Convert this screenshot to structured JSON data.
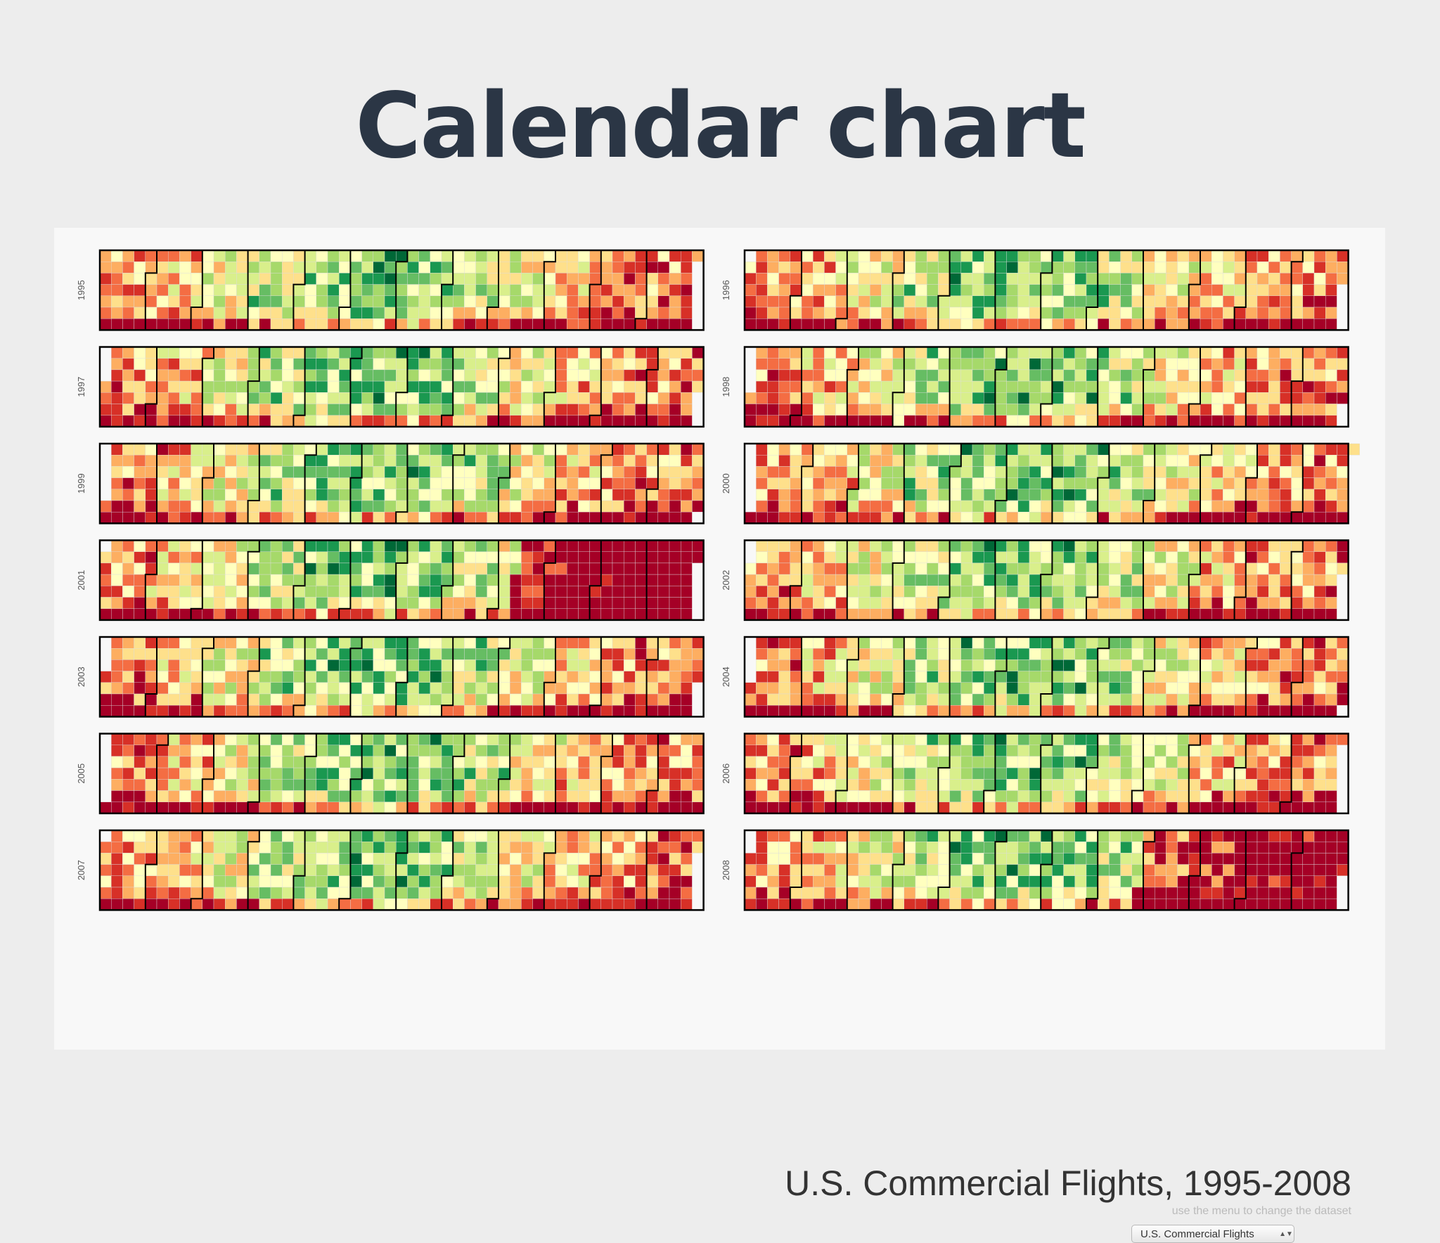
{
  "slide": {
    "title": "Calendar chart"
  },
  "chart_data": {
    "type": "heatmap",
    "subtype": "calendar",
    "title": "U.S. Commercial Flights, 1995-2008",
    "subtitle": "use the menu to change the dataset",
    "years": [
      "1995",
      "1996",
      "1997",
      "1998",
      "1999",
      "2000",
      "2001",
      "2002",
      "2003",
      "2004",
      "2005",
      "2006",
      "2007",
      "2008"
    ],
    "rows_per_year": 7,
    "columns_per_year": 53,
    "layout": "two columns of calendars, years in chronological order left-to-right",
    "color_scale": [
      "#a50026",
      "#d73027",
      "#f46d43",
      "#fdae61",
      "#fee08b",
      "#ffffbf",
      "#d9ef8b",
      "#a6d96a",
      "#66bd63",
      "#1a9850",
      "#006837"
    ],
    "color_scale_direction": "red = low, green = high",
    "grid": true,
    "legend": "none"
  },
  "controls": {
    "dataset_selected": "U.S. Commercial Flights",
    "select_arrows": "▲▼"
  }
}
